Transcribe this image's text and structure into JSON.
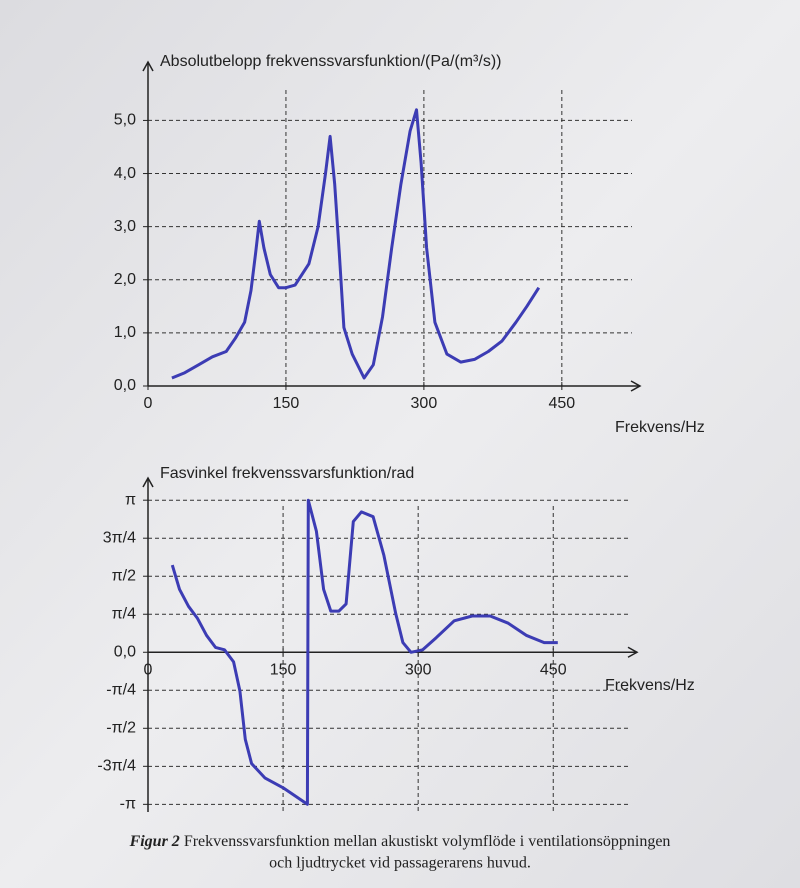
{
  "chart_data": [
    {
      "type": "line",
      "y_label": "Absolutbelopp frekvenssvarsfunktion/(Pa/(m³/s))",
      "x_label": "Frekvens/Hz",
      "xlim": [
        0,
        535
      ],
      "xticks": [
        0,
        150,
        300,
        450
      ],
      "ylim": [
        0,
        6.1
      ],
      "yticks": [
        {
          "value": 0,
          "label": "0,0"
        },
        {
          "value": 1,
          "label": "1,0"
        },
        {
          "value": 2,
          "label": "2,0"
        },
        {
          "value": 3,
          "label": "3,0"
        },
        {
          "value": 4,
          "label": "4,0"
        },
        {
          "value": 5,
          "label": "5,0"
        }
      ],
      "grid": true,
      "series": [
        {
          "color": "#3c3cb4",
          "x": [
            26,
            40,
            55,
            70,
            85,
            95,
            105,
            112,
            117,
            121,
            126,
            133,
            142,
            150,
            160,
            175,
            185,
            193,
            198,
            203,
            208,
            213,
            222,
            235,
            245,
            255,
            265,
            275,
            285,
            292,
            297,
            303,
            312,
            325,
            340,
            355,
            370,
            385,
            400,
            412,
            425
          ],
          "values": [
            0.15,
            0.25,
            0.4,
            0.55,
            0.65,
            0.9,
            1.2,
            1.8,
            2.5,
            3.1,
            2.6,
            2.1,
            1.85,
            1.85,
            1.9,
            2.3,
            3.0,
            4.0,
            4.7,
            3.8,
            2.5,
            1.1,
            0.6,
            0.15,
            0.4,
            1.3,
            2.6,
            3.8,
            4.8,
            5.2,
            4.2,
            2.6,
            1.2,
            0.6,
            0.45,
            0.5,
            0.65,
            0.85,
            1.2,
            1.5,
            1.85
          ]
        }
      ]
    },
    {
      "type": "line",
      "y_label": "Fasvinkel frekvenssvarsfunktion/rad",
      "x_label": "Frekvens/Hz",
      "xlim": [
        0,
        543
      ],
      "xticks": [
        0,
        150,
        300,
        450
      ],
      "ylim": [
        -3.3,
        3.6
      ],
      "yticks": [
        {
          "value": 3.1416,
          "label": "π"
        },
        {
          "value": 2.3562,
          "label": "3π/4"
        },
        {
          "value": 1.5708,
          "label": "π/2"
        },
        {
          "value": 0.7854,
          "label": "π/4"
        },
        {
          "value": 0,
          "label": "0,0"
        },
        {
          "value": -0.7854,
          "label": "-π/4"
        },
        {
          "value": -1.5708,
          "label": "-π/2"
        },
        {
          "value": -2.3562,
          "label": "-3π/4"
        },
        {
          "value": -3.1416,
          "label": "-π"
        }
      ],
      "grid": true,
      "series": [
        {
          "color": "#3c3cb4",
          "x": [
            27,
            35,
            45,
            55,
            65,
            75,
            85,
            95,
            102,
            108,
            115,
            130,
            150,
            177,
            178,
            187,
            195,
            203,
            212,
            220,
            228,
            237,
            250,
            262,
            275,
            283,
            292,
            305,
            320,
            340,
            360,
            380,
            400,
            420,
            440,
            455
          ],
          "values": [
            1.8,
            1.3,
            0.95,
            0.7,
            0.35,
            0.1,
            0.05,
            -0.2,
            -0.8,
            -1.8,
            -2.3,
            -2.6,
            -2.8,
            -3.14,
            3.14,
            2.5,
            1.3,
            0.85,
            0.85,
            1.0,
            2.7,
            2.9,
            2.8,
            2.0,
            0.8,
            0.2,
            0.0,
            0.05,
            0.3,
            0.65,
            0.75,
            0.75,
            0.6,
            0.35,
            0.2,
            0.2
          ]
        }
      ]
    }
  ],
  "caption": {
    "label": "Figur 2",
    "lines": [
      "Frekvenssvarsfunktion mellan akustiskt volymflöde i ventilationsöppningen",
      "och ljudtrycket vid passagerarens huvud."
    ]
  }
}
